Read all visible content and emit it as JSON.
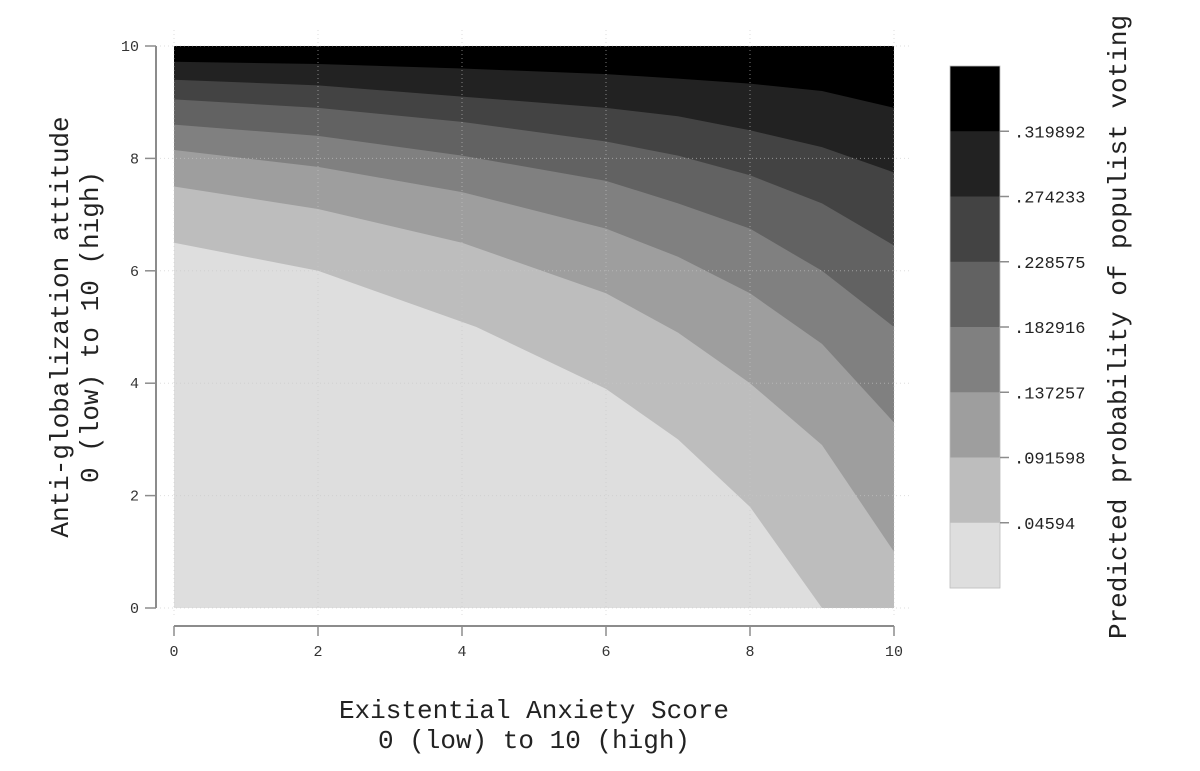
{
  "chart_data": {
    "type": "heatmap",
    "subtype": "contour",
    "title": "",
    "xlabel": "Existential Anxiety Score\n0 (low) to 10 (high)",
    "xlabel_lines": [
      "Existential Anxiety Score",
      "0 (low) to 10 (high)"
    ],
    "ylabel": "Anti-globalization attitude\n0 (low) to 10 (high)",
    "ylabel_lines": [
      "Anti-globalization attitude",
      "0 (low) to 10 (high)"
    ],
    "zlabel": "Predicted probability of populist voting",
    "xlim": [
      0,
      10
    ],
    "ylim": [
      0,
      10
    ],
    "x_ticks": [
      "0",
      "2",
      "4",
      "6",
      "8",
      "10"
    ],
    "y_ticks": [
      "0",
      "2",
      "4",
      "6",
      "8",
      "10"
    ],
    "grid": true,
    "legend_position": "right",
    "contour_levels": [
      0.04594,
      0.091598,
      0.137257,
      0.182916,
      0.228575,
      0.274233,
      0.319892
    ],
    "colorbar_labels": [
      ".319892",
      ".274233",
      ".228575",
      ".182916",
      ".137257",
      ".091598",
      ".04594"
    ],
    "band_colors": [
      "#dedede",
      "#bdbdbd",
      "#9e9e9e",
      "#808080",
      "#626262",
      "#434343",
      "#222222",
      "#000000"
    ],
    "contour_lines": [
      {
        "level": 0.04594,
        "points": [
          [
            0,
            6.5
          ],
          [
            2,
            6.0
          ],
          [
            4.2,
            5.0
          ],
          [
            6,
            3.9
          ],
          [
            7,
            3.0
          ],
          [
            8,
            1.8
          ],
          [
            9,
            0.0
          ]
        ]
      },
      {
        "level": 0.091598,
        "points": [
          [
            0,
            7.5
          ],
          [
            2,
            7.1
          ],
          [
            4,
            6.5
          ],
          [
            6,
            5.6
          ],
          [
            7,
            4.9
          ],
          [
            8,
            4.0
          ],
          [
            9,
            2.9
          ],
          [
            10,
            1.0
          ]
        ]
      },
      {
        "level": 0.137257,
        "points": [
          [
            0,
            8.15
          ],
          [
            2,
            7.85
          ],
          [
            4,
            7.4
          ],
          [
            6,
            6.75
          ],
          [
            7,
            6.25
          ],
          [
            8,
            5.6
          ],
          [
            9,
            4.7
          ],
          [
            10,
            3.3
          ]
        ]
      },
      {
        "level": 0.182916,
        "points": [
          [
            0,
            8.6
          ],
          [
            2,
            8.4
          ],
          [
            4,
            8.05
          ],
          [
            6,
            7.6
          ],
          [
            7,
            7.2
          ],
          [
            8,
            6.75
          ],
          [
            9,
            6.0
          ],
          [
            10,
            5.0
          ]
        ]
      },
      {
        "level": 0.228575,
        "points": [
          [
            0,
            9.05
          ],
          [
            2,
            8.9
          ],
          [
            4,
            8.65
          ],
          [
            6,
            8.3
          ],
          [
            7,
            8.05
          ],
          [
            8,
            7.7
          ],
          [
            9,
            7.2
          ],
          [
            10,
            6.45
          ]
        ]
      },
      {
        "level": 0.274233,
        "points": [
          [
            0,
            9.4
          ],
          [
            2,
            9.3
          ],
          [
            4,
            9.1
          ],
          [
            6,
            8.9
          ],
          [
            7,
            8.75
          ],
          [
            8,
            8.5
          ],
          [
            9,
            8.2
          ],
          [
            10,
            7.75
          ]
        ]
      },
      {
        "level": 0.319892,
        "points": [
          [
            0,
            9.72
          ],
          [
            2,
            9.68
          ],
          [
            4,
            9.6
          ],
          [
            6,
            9.5
          ],
          [
            7,
            9.42
          ],
          [
            8,
            9.33
          ],
          [
            9,
            9.2
          ],
          [
            10,
            8.9
          ]
        ]
      }
    ]
  }
}
